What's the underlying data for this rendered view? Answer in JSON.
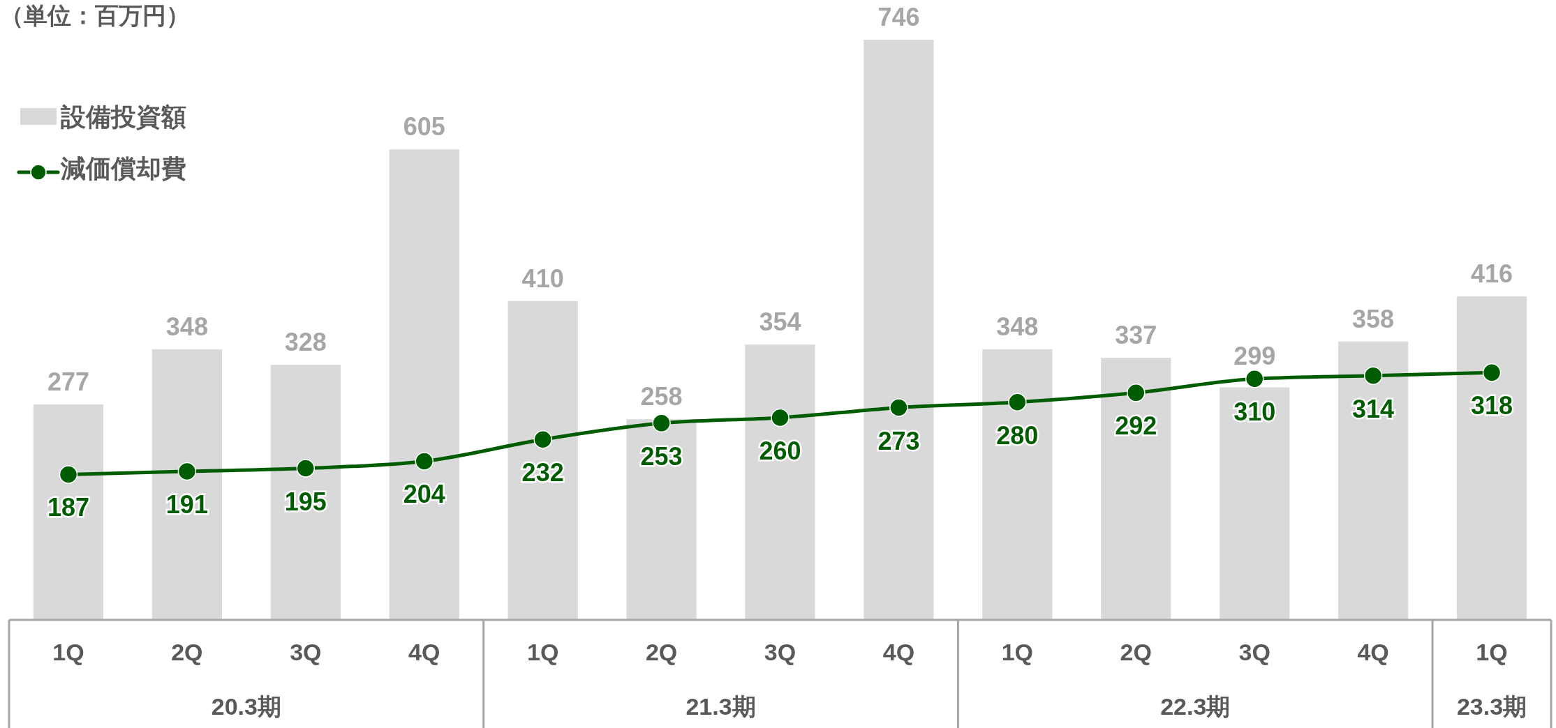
{
  "chart_data": {
    "type": "bar",
    "subtitle": "（単位：百万円）",
    "categories": [
      "1Q",
      "2Q",
      "3Q",
      "4Q",
      "1Q",
      "2Q",
      "3Q",
      "4Q",
      "1Q",
      "2Q",
      "3Q",
      "4Q",
      "1Q"
    ],
    "series": [
      {
        "name": "設備投資額",
        "color": "#d9d9d9",
        "values": [
          277,
          348,
          328,
          605,
          410,
          258,
          354,
          746,
          348,
          337,
          299,
          358,
          416
        ]
      },
      {
        "name": "減価償却費",
        "type": "line",
        "color": "#005c00",
        "values": [
          187,
          191,
          195,
          204,
          232,
          253,
          260,
          273,
          280,
          292,
          310,
          314,
          318
        ]
      }
    ],
    "annotations": [
      "20.3期",
      "21.3期",
      "22.3期",
      "23.3期"
    ],
    "data_labels": true,
    "legend": "top left",
    "marker": "circle"
  }
}
